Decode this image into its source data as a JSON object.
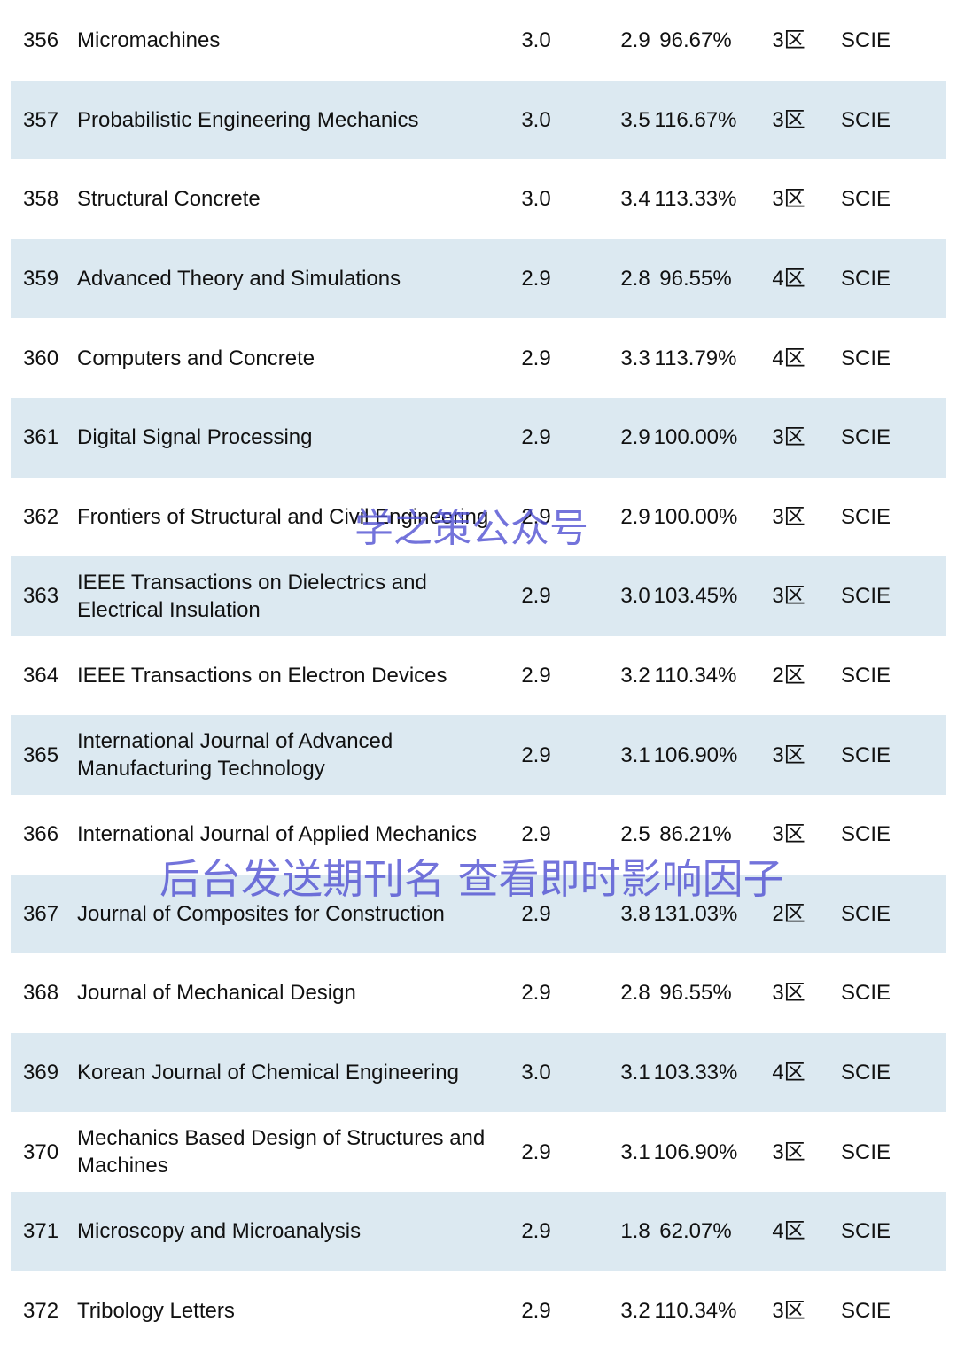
{
  "table": {
    "rows": [
      [
        "356",
        "Micromachines",
        "3.0",
        "2.9",
        "96.67%",
        "3区",
        "SCIE"
      ],
      [
        "357",
        "Probabilistic Engineering Mechanics",
        "3.0",
        "3.5",
        "116.67%",
        "3区",
        "SCIE"
      ],
      [
        "358",
        "Structural Concrete",
        "3.0",
        "3.4",
        "113.33%",
        "3区",
        "SCIE"
      ],
      [
        "359",
        "Advanced Theory and Simulations",
        "2.9",
        "2.8",
        "96.55%",
        "4区",
        "SCIE"
      ],
      [
        "360",
        "Computers and Concrete",
        "2.9",
        "3.3",
        "113.79%",
        "4区",
        "SCIE"
      ],
      [
        "361",
        "Digital Signal Processing",
        "2.9",
        "2.9",
        "100.00%",
        "3区",
        "SCIE"
      ],
      [
        "362",
        "Frontiers of Structural and Civil Engineering",
        "2.9",
        "2.9",
        "100.00%",
        "3区",
        "SCIE"
      ],
      [
        "363",
        "IEEE Transactions on Dielectrics and Electrical Insulation",
        "2.9",
        "3.0",
        "103.45%",
        "3区",
        "SCIE"
      ],
      [
        "364",
        "IEEE Transactions on Electron Devices",
        "2.9",
        "3.2",
        "110.34%",
        "2区",
        "SCIE"
      ],
      [
        "365",
        "International Journal of Advanced Manufacturing Technology",
        "2.9",
        "3.1",
        "106.90%",
        "3区",
        "SCIE"
      ],
      [
        "366",
        "International Journal of Applied Mechanics",
        "2.9",
        "2.5",
        "86.21%",
        "3区",
        "SCIE"
      ],
      [
        "367",
        "Journal of Composites for Construction",
        "2.9",
        "3.8",
        "131.03%",
        "2区",
        "SCIE"
      ],
      [
        "368",
        "Journal of Mechanical Design",
        "2.9",
        "2.8",
        "96.55%",
        "3区",
        "SCIE"
      ],
      [
        "369",
        "Korean Journal of Chemical Engineering",
        "3.0",
        "3.1",
        "103.33%",
        "4区",
        "SCIE"
      ],
      [
        "370",
        "Mechanics Based Design of Structures and Machines",
        "2.9",
        "3.1",
        "106.90%",
        "3区",
        "SCIE"
      ],
      [
        "371",
        "Microscopy and Microanalysis",
        "2.9",
        "1.8",
        "62.07%",
        "4区",
        "SCIE"
      ],
      [
        "372",
        "Tribology Letters",
        "2.9",
        "3.2",
        "110.34%",
        "3区",
        "SCIE"
      ]
    ]
  },
  "watermarks": [
    "学之策公众号",
    "后台发送期刊名 查看即时影响因子"
  ]
}
